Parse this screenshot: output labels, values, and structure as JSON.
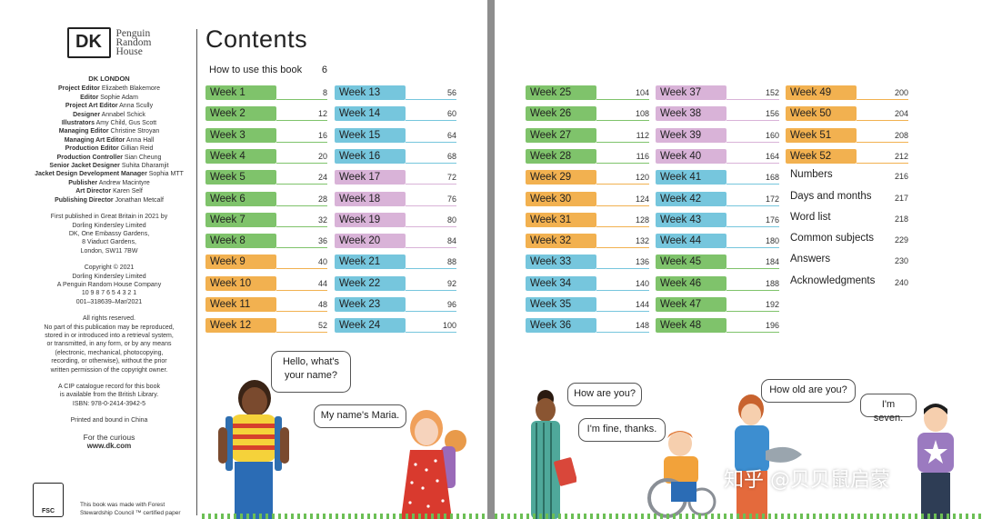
{
  "left_page": {
    "logo": {
      "dk": "DK",
      "publisher_lines": [
        "Penguin",
        "Random",
        "House"
      ]
    },
    "credits_heading": "DK LONDON",
    "credits": [
      {
        "role": "Project Editor",
        "name": "Elizabeth Blakemore"
      },
      {
        "role": "Editor",
        "name": "Sophie Adam"
      },
      {
        "role": "Project Art Editor",
        "name": "Anna Scully"
      },
      {
        "role": "Designer",
        "name": "Annabel Schick"
      },
      {
        "role": "Illustrators",
        "name": "Amy Child, Gus Scott"
      },
      {
        "role": "Managing Editor",
        "name": "Christine Stroyan"
      },
      {
        "role": "Managing Art Editor",
        "name": "Anna Hall"
      },
      {
        "role": "Production Editor",
        "name": "Gillian Reid"
      },
      {
        "role": "Production Controller",
        "name": "Sian Cheung"
      },
      {
        "role": "Senior Jacket Designer",
        "name": "Suhita Dharamjit"
      },
      {
        "role": "Jacket Design Development Manager",
        "name": "Sophia MTT"
      },
      {
        "role": "Publisher",
        "name": "Andrew Macintyre"
      },
      {
        "role": "Art Director",
        "name": "Karen Self"
      },
      {
        "role": "Publishing Director",
        "name": "Jonathan Metcalf"
      }
    ],
    "first_published": [
      "First published in Great Britain in 2021 by",
      "Dorling Kindersley Limited",
      "DK, One Embassy Gardens,",
      "8 Viaduct Gardens,",
      "London, SW11 7BW"
    ],
    "copyright": [
      "Copyright © 2021",
      "Dorling Kindersley Limited",
      "A Penguin Random House Company",
      "10 9 8 7 6 5 4 3 2 1",
      "001–318639–Mar/2021"
    ],
    "rights": [
      "All rights reserved.",
      "No part of this publication may be reproduced,",
      "stored in or introduced into a retrieval system,",
      "or transmitted, in any form, or by any means",
      "(electronic, mechanical, photocopying,",
      "recording, or otherwise), without the prior",
      "written permission of the copyright owner."
    ],
    "cip": [
      "A CIP catalogue record for this book",
      "is available from the British Library.",
      "ISBN: 978-0-2414-3942-5"
    ],
    "printed": "Printed and bound in China",
    "curious": "For the curious",
    "website": "www.dk.com",
    "fsc_label": "FSC",
    "fsc_note": [
      "This book was made with Forest",
      "Stewardship Council ™ certified paper"
    ],
    "title": "Contents",
    "how_to": {
      "label": "How to use this book",
      "page": "6"
    },
    "bubbles": [
      "Hello, what's\nyour name?",
      "My name's Maria."
    ]
  },
  "contents_left_col1": [
    {
      "label": "Week 1",
      "page": "8",
      "color": "#7fc36b"
    },
    {
      "label": "Week 2",
      "page": "12",
      "color": "#7fc36b"
    },
    {
      "label": "Week 3",
      "page": "16",
      "color": "#7fc36b"
    },
    {
      "label": "Week 4",
      "page": "20",
      "color": "#7fc36b"
    },
    {
      "label": "Week 5",
      "page": "24",
      "color": "#7fc36b"
    },
    {
      "label": "Week 6",
      "page": "28",
      "color": "#7fc36b"
    },
    {
      "label": "Week 7",
      "page": "32",
      "color": "#7fc36b"
    },
    {
      "label": "Week 8",
      "page": "36",
      "color": "#7fc36b"
    },
    {
      "label": "Week 9",
      "page": "40",
      "color": "#f2b150"
    },
    {
      "label": "Week 10",
      "page": "44",
      "color": "#f2b150"
    },
    {
      "label": "Week 11",
      "page": "48",
      "color": "#f2b150"
    },
    {
      "label": "Week 12",
      "page": "52",
      "color": "#f2b150"
    }
  ],
  "contents_left_col2": [
    {
      "label": "Week 13",
      "page": "56",
      "color": "#76c6dd"
    },
    {
      "label": "Week 14",
      "page": "60",
      "color": "#76c6dd"
    },
    {
      "label": "Week 15",
      "page": "64",
      "color": "#76c6dd"
    },
    {
      "label": "Week 16",
      "page": "68",
      "color": "#76c6dd"
    },
    {
      "label": "Week 17",
      "page": "72",
      "color": "#d9b3d8"
    },
    {
      "label": "Week 18",
      "page": "76",
      "color": "#d9b3d8"
    },
    {
      "label": "Week 19",
      "page": "80",
      "color": "#d9b3d8"
    },
    {
      "label": "Week 20",
      "page": "84",
      "color": "#d9b3d8"
    },
    {
      "label": "Week 21",
      "page": "88",
      "color": "#76c6dd"
    },
    {
      "label": "Week 22",
      "page": "92",
      "color": "#76c6dd"
    },
    {
      "label": "Week 23",
      "page": "96",
      "color": "#76c6dd"
    },
    {
      "label": "Week 24",
      "page": "100",
      "color": "#76c6dd"
    }
  ],
  "contents_right_col1": [
    {
      "label": "Week 25",
      "page": "104",
      "color": "#7fc36b"
    },
    {
      "label": "Week 26",
      "page": "108",
      "color": "#7fc36b"
    },
    {
      "label": "Week 27",
      "page": "112",
      "color": "#7fc36b"
    },
    {
      "label": "Week 28",
      "page": "116",
      "color": "#7fc36b"
    },
    {
      "label": "Week 29",
      "page": "120",
      "color": "#f2b150"
    },
    {
      "label": "Week 30",
      "page": "124",
      "color": "#f2b150"
    },
    {
      "label": "Week 31",
      "page": "128",
      "color": "#f2b150"
    },
    {
      "label": "Week 32",
      "page": "132",
      "color": "#f2b150"
    },
    {
      "label": "Week 33",
      "page": "136",
      "color": "#76c6dd"
    },
    {
      "label": "Week 34",
      "page": "140",
      "color": "#76c6dd"
    },
    {
      "label": "Week 35",
      "page": "144",
      "color": "#76c6dd"
    },
    {
      "label": "Week 36",
      "page": "148",
      "color": "#76c6dd"
    }
  ],
  "contents_right_col2": [
    {
      "label": "Week 37",
      "page": "152",
      "color": "#d9b3d8"
    },
    {
      "label": "Week 38",
      "page": "156",
      "color": "#d9b3d8"
    },
    {
      "label": "Week 39",
      "page": "160",
      "color": "#d9b3d8"
    },
    {
      "label": "Week 40",
      "page": "164",
      "color": "#d9b3d8"
    },
    {
      "label": "Week 41",
      "page": "168",
      "color": "#76c6dd"
    },
    {
      "label": "Week 42",
      "page": "172",
      "color": "#76c6dd"
    },
    {
      "label": "Week 43",
      "page": "176",
      "color": "#76c6dd"
    },
    {
      "label": "Week 44",
      "page": "180",
      "color": "#76c6dd"
    },
    {
      "label": "Week 45",
      "page": "184",
      "color": "#7fc36b"
    },
    {
      "label": "Week 46",
      "page": "188",
      "color": "#7fc36b"
    },
    {
      "label": "Week 47",
      "page": "192",
      "color": "#7fc36b"
    },
    {
      "label": "Week 48",
      "page": "196",
      "color": "#7fc36b"
    }
  ],
  "contents_right_col3": [
    {
      "label": "Week 49",
      "page": "200",
      "color": "#f2b150"
    },
    {
      "label": "Week 50",
      "page": "204",
      "color": "#f2b150"
    },
    {
      "label": "Week 51",
      "page": "208",
      "color": "#f2b150"
    },
    {
      "label": "Week 52",
      "page": "212",
      "color": "#f2b150"
    },
    {
      "label": "Numbers",
      "page": "216",
      "color": ""
    },
    {
      "label": "Days and months",
      "page": "217",
      "color": ""
    },
    {
      "label": "Word list",
      "page": "218",
      "color": ""
    },
    {
      "label": "Common subjects",
      "page": "229",
      "color": ""
    },
    {
      "label": "Answers",
      "page": "230",
      "color": ""
    },
    {
      "label": "Acknowledgments",
      "page": "240",
      "color": ""
    }
  ],
  "right_page": {
    "bubbles": [
      "How are you?",
      "I'm fine, thanks.",
      "How old are you?",
      "I'm seven."
    ]
  },
  "watermark": "知乎 @贝贝鼠启蒙"
}
